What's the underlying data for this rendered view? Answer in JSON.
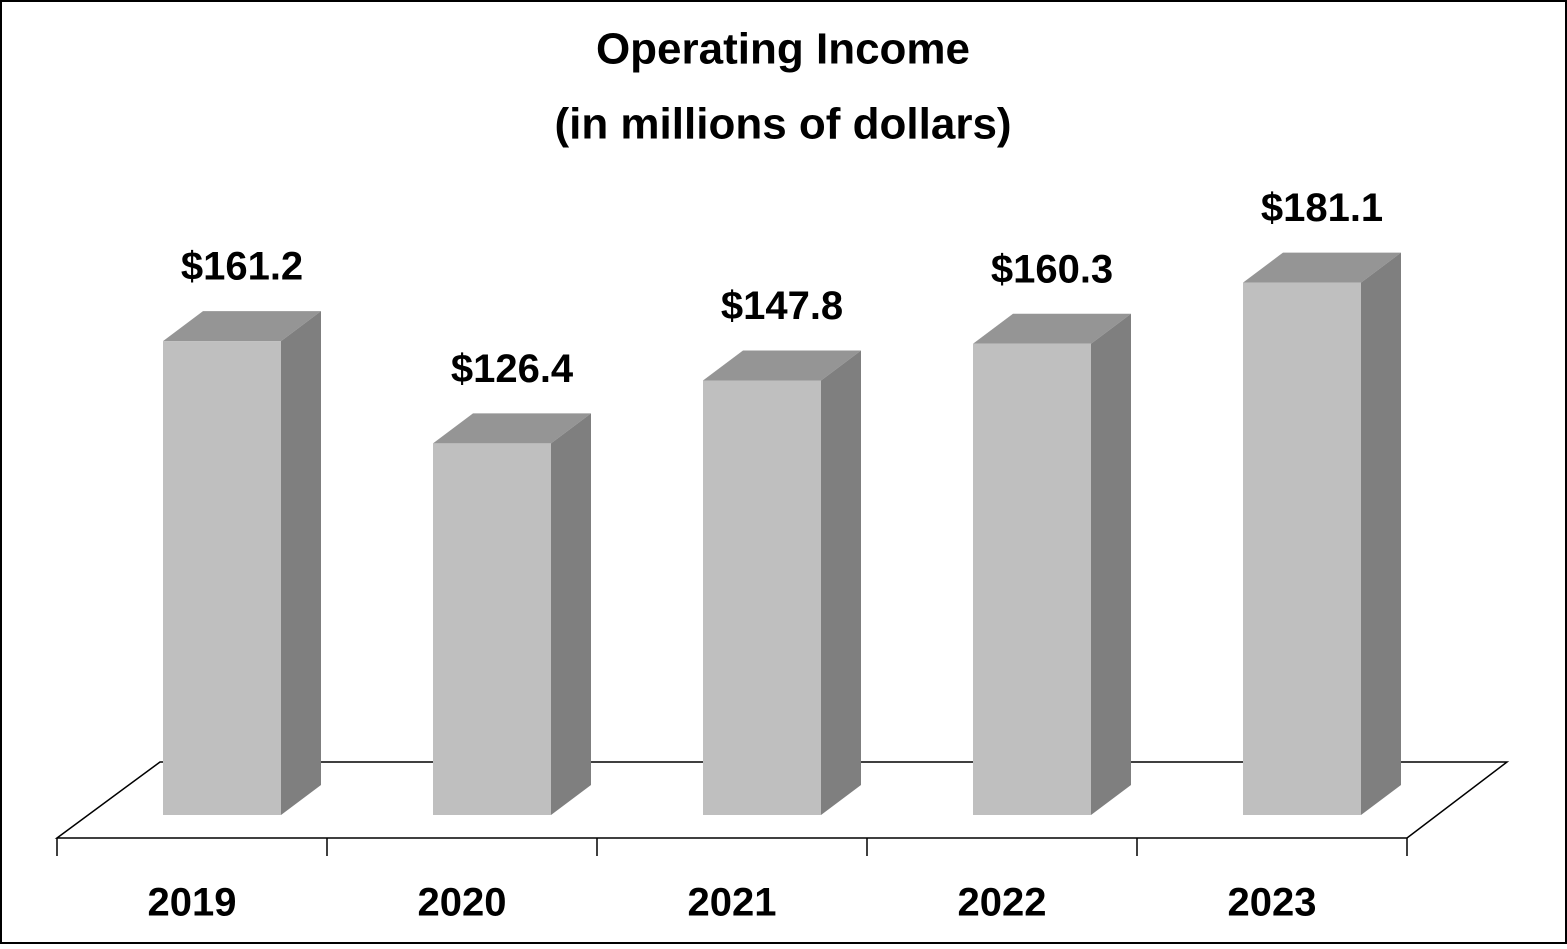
{
  "chart_data": {
    "type": "bar3d",
    "title": "Operating Income",
    "subtitle": "(in millions of dollars)",
    "categories": [
      "2019",
      "2020",
      "2021",
      "2022",
      "2023"
    ],
    "values": [
      161.2,
      126.4,
      147.8,
      160.3,
      181.1
    ],
    "value_labels": [
      "$161.2",
      "$126.4",
      "$147.8",
      "$160.3",
      "$181.1"
    ],
    "colors": {
      "front": "#bfbfbf",
      "top": "#959595",
      "side": "#7f7f7f"
    }
  }
}
